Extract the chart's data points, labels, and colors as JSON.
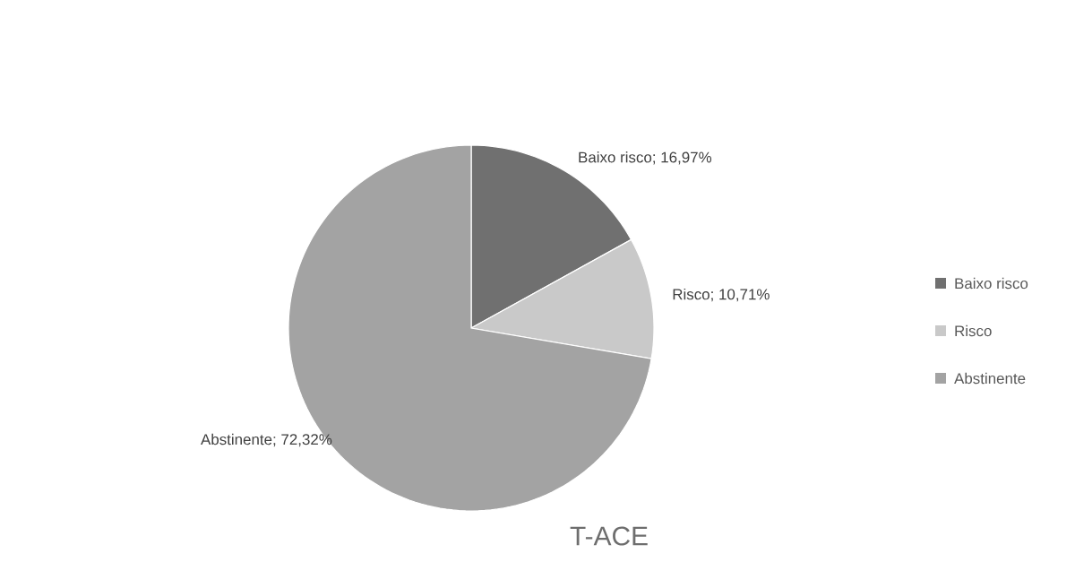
{
  "chart_data": {
    "type": "pie",
    "title": "T-ACE",
    "categories": [
      "Baixo risco",
      "Risco",
      "Abstinente"
    ],
    "values": [
      16.97,
      10.71,
      72.32
    ],
    "colors": [
      "#707070",
      "#c9c9c9",
      "#a3a3a3"
    ],
    "value_labels": [
      "Baixo risco; 16,97%",
      "Risco; 10,71%",
      "Abstinente; 72,32%"
    ],
    "legend": "right"
  }
}
